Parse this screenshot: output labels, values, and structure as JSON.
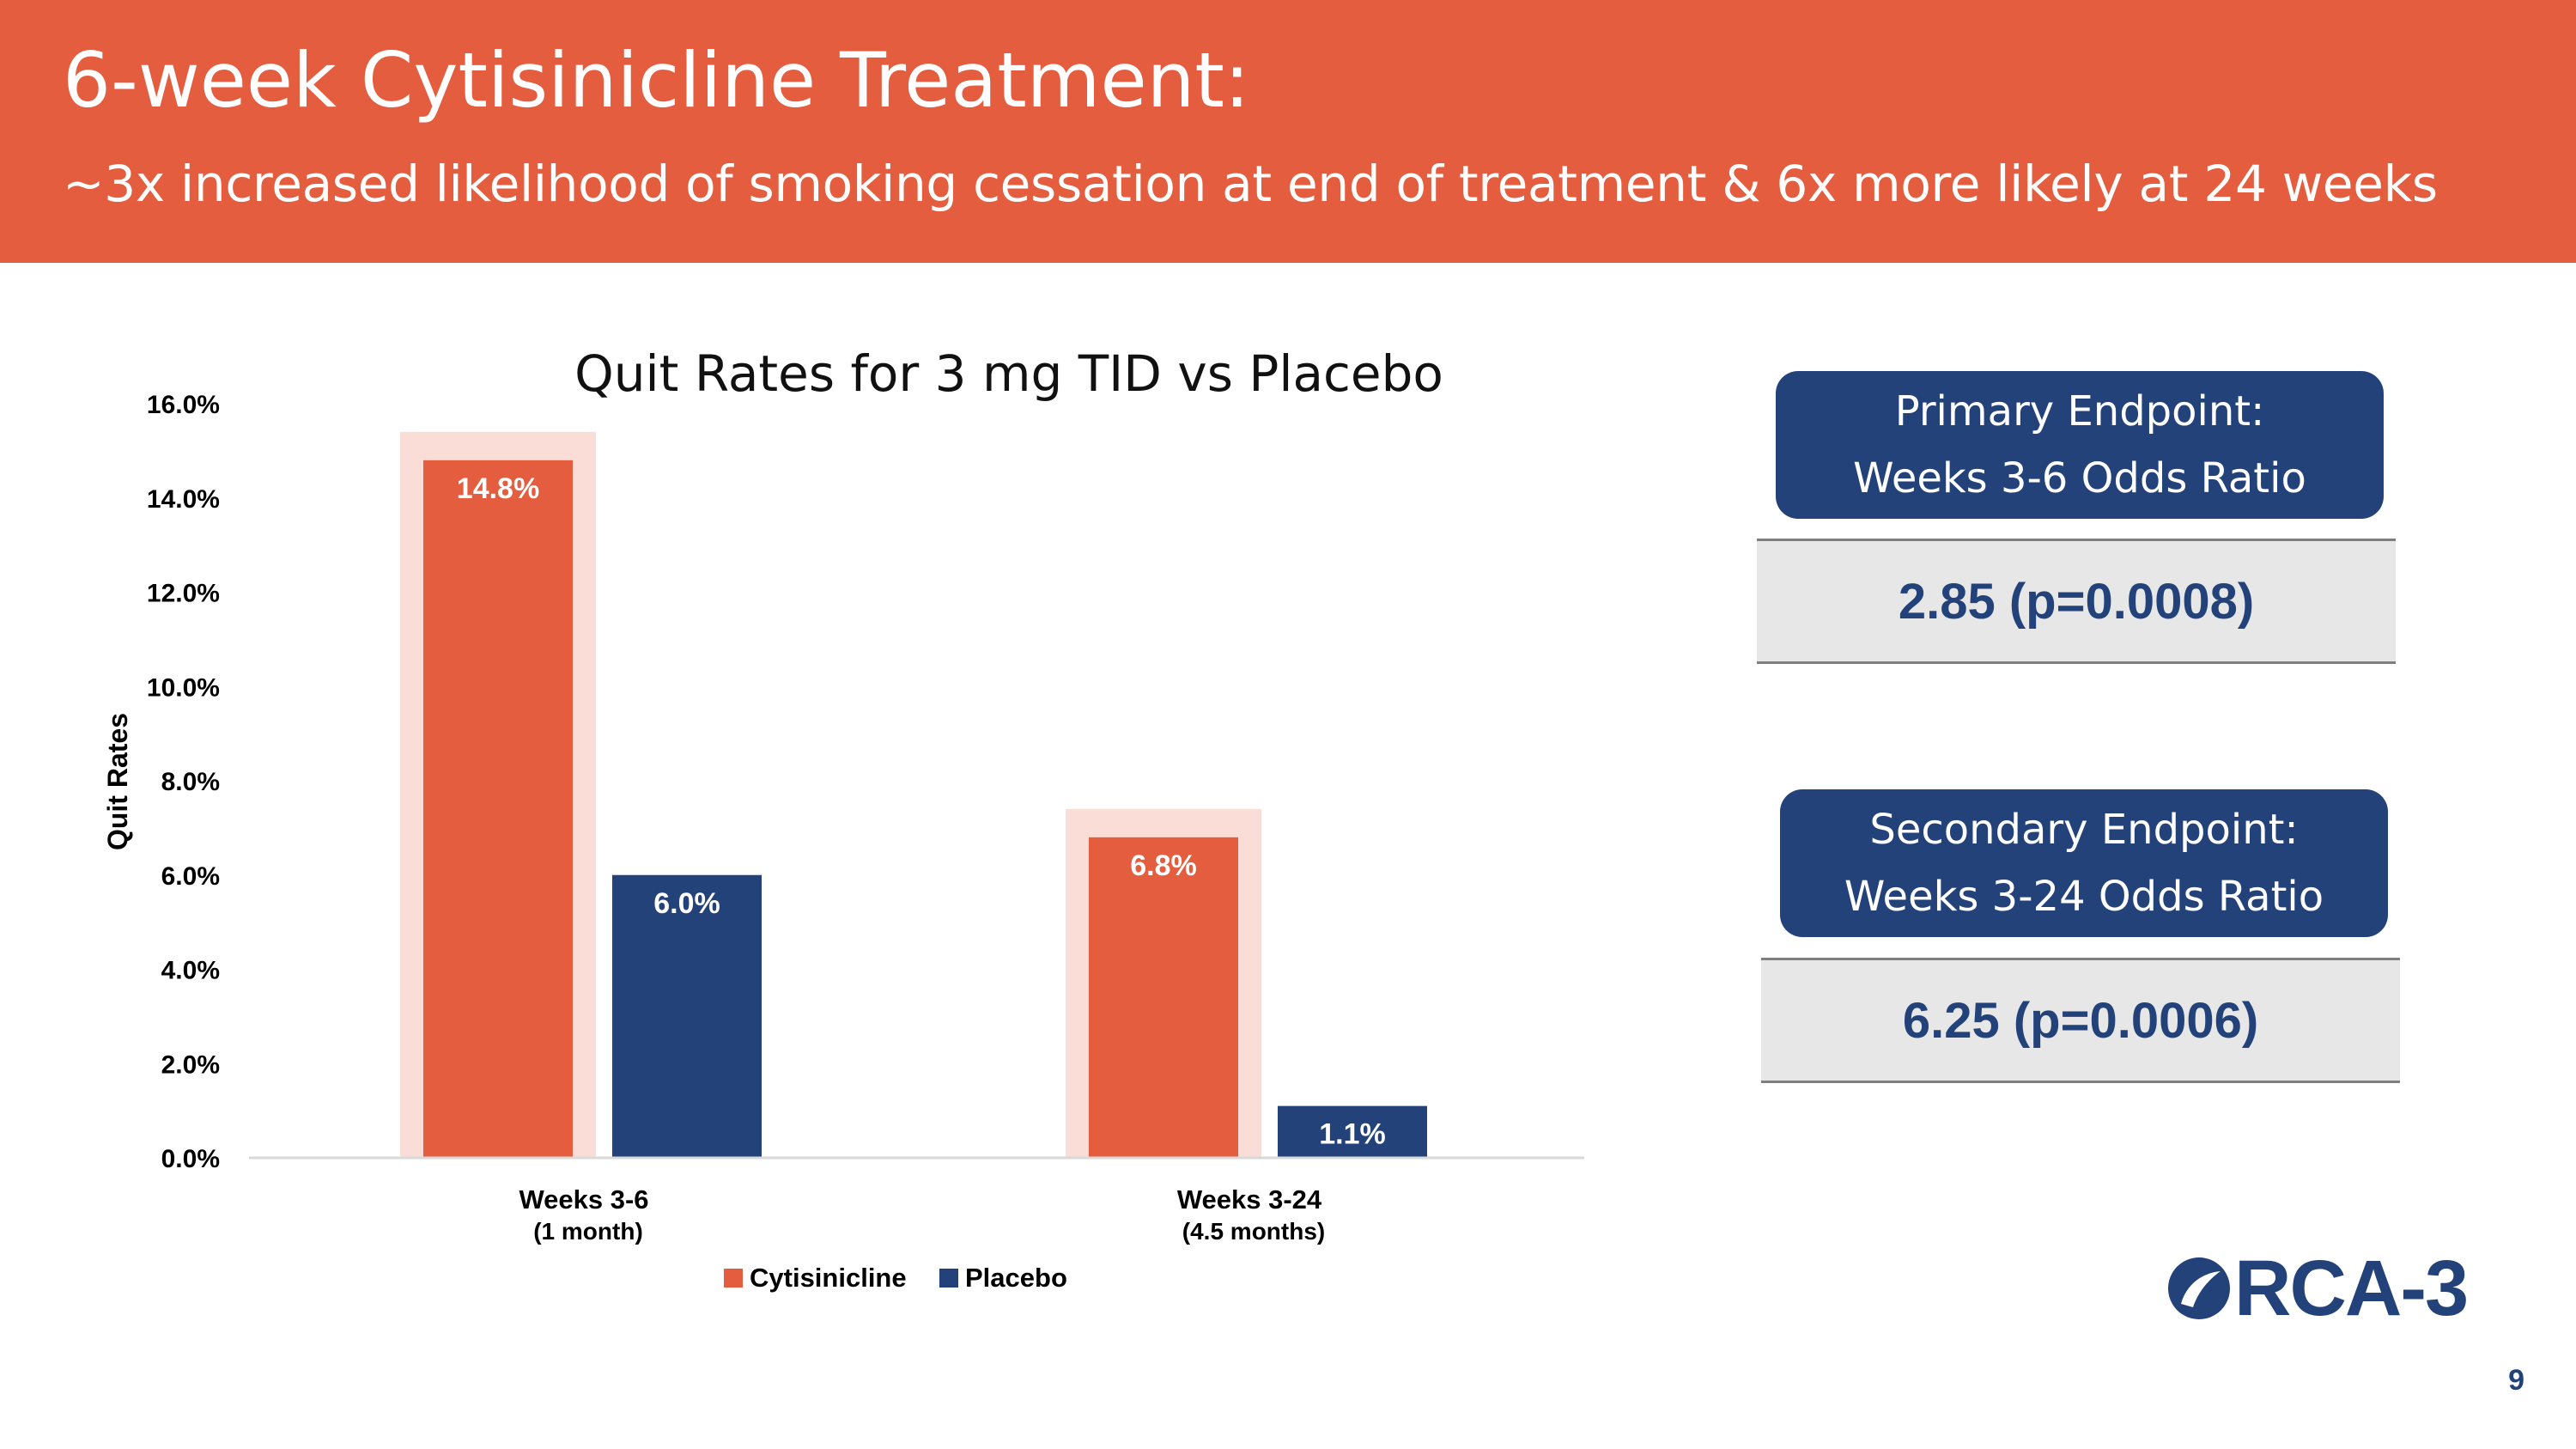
{
  "header": {
    "title": "6-week Cytisinicline Treatment:",
    "subtitle": "~3x increased likelihood of smoking cessation at end of treatment & 6x more likely at 24 weeks"
  },
  "colors": {
    "header_bg": "#e35d3e",
    "cytisinicline": "#e35d3e",
    "placebo": "#23427a",
    "highlight": "#f9ddd6",
    "value_bg": "#e7e7e7"
  },
  "chart_data": {
    "type": "bar",
    "title": "Quit Rates for 3 mg TID vs Placebo",
    "ylabel": "Quit Rates",
    "xlabel": "",
    "ylim": [
      0,
      16
    ],
    "yticks": [
      "0.0%",
      "2.0%",
      "4.0%",
      "6.0%",
      "8.0%",
      "10.0%",
      "12.0%",
      "14.0%",
      "16.0%"
    ],
    "categories": [
      {
        "label": "Weeks 3-6",
        "sublabel": "(1 month)"
      },
      {
        "label": "Weeks 3-24",
        "sublabel": "(4.5 months)"
      }
    ],
    "series": [
      {
        "name": "Cytisinicline",
        "color": "#e35d3e",
        "values": [
          14.8,
          6.8
        ],
        "labels": [
          "14.8%",
          "6.8%"
        ],
        "highlighted": true
      },
      {
        "name": "Placebo",
        "color": "#23427a",
        "values": [
          6.0,
          1.1
        ],
        "labels": [
          "6.0%",
          "1.1%"
        ],
        "highlighted": false
      }
    ],
    "legend_position": "bottom-center",
    "grid": false
  },
  "endpoints": {
    "primary": {
      "line1": "Primary Endpoint:",
      "line2": "Weeks 3-6 Odds Ratio",
      "value": "2.85 (p=0.0008)"
    },
    "secondary": {
      "line1": "Secondary Endpoint:",
      "line2": "Weeks 3-24 Odds Ratio",
      "value": "6.25 (p=0.0006)"
    }
  },
  "logo": {
    "text": "RCA-3",
    "full_text": "ORCA-3"
  },
  "page_number": "9"
}
